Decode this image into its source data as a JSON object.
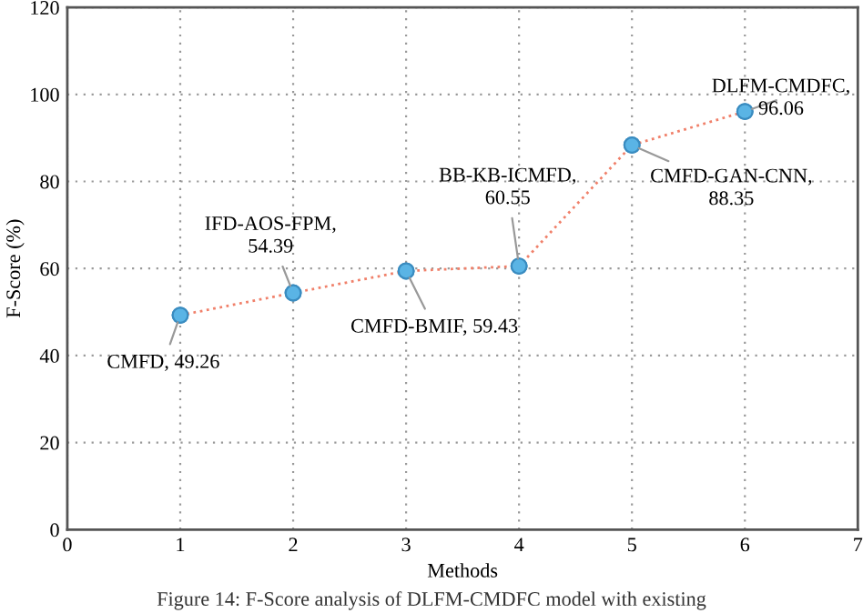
{
  "chart_data": {
    "type": "line",
    "xlabel": "Methods",
    "ylabel": "F-Score (%)",
    "x": [
      1,
      2,
      3,
      4,
      5,
      6
    ],
    "series": [
      {
        "color": "#f0806a",
        "colors": [
          "#5ab4e5",
          "#5ab4e5",
          "#5ab4e5",
          "#5ab4e5",
          "#5ab4e5",
          "#5ab4e5"
        ],
        "values": [
          49.26,
          54.39,
          59.43,
          60.55,
          88.35,
          96.06
        ]
      }
    ],
    "xlim": [
      0,
      7
    ],
    "xticks": [
      0,
      1,
      2,
      3,
      4,
      5,
      6,
      7
    ],
    "ylim": [
      0,
      120
    ],
    "yticks": [
      0,
      20,
      40,
      60,
      80,
      100,
      120
    ],
    "grid": true,
    "marker": "circle",
    "line_style": "dotted",
    "annotations": [
      {
        "text": "CMFD, 49.26",
        "x": 1,
        "y": 49.26
      },
      {
        "text": "IFD-AOS-FPM,\n54.39",
        "x": 2,
        "y": 54.39
      },
      {
        "text": "CMFD-BMIF, 59.43",
        "x": 3,
        "y": 59.43
      },
      {
        "text": "BB-KB-ICMFD,\n60.55",
        "x": 4,
        "y": 60.55
      },
      {
        "text": "CMFD-GAN-CNN,\n88.35",
        "x": 5,
        "y": 88.35
      },
      {
        "text": "DLFM-CMDFC,\n96.06",
        "x": 6,
        "y": 96.06
      },
      "Figure 14: F-Score analysis of DLFM-CMDFC model with existing"
    ]
  }
}
